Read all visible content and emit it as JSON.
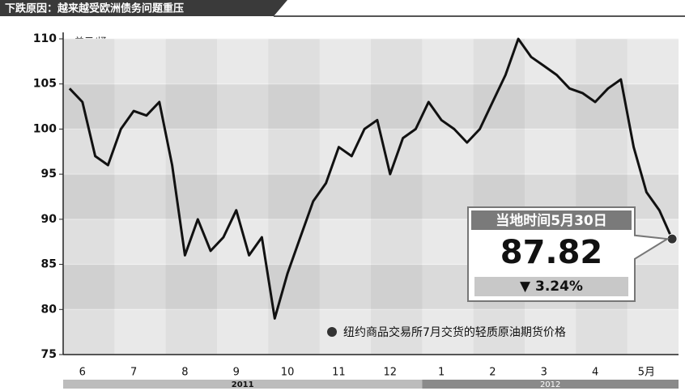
{
  "chart_data": {
    "type": "line",
    "title": "下跌原因：越来越受欧洲债务问题重压",
    "y_label": "美元/桶",
    "categories": [
      null,
      "6",
      null,
      null,
      null,
      "7",
      null,
      null,
      null,
      "8",
      null,
      null,
      null,
      "9",
      null,
      null,
      null,
      "10",
      null,
      null,
      null,
      "11",
      null,
      null,
      null,
      "12",
      null,
      null,
      null,
      "1",
      null,
      null,
      null,
      "2",
      null,
      null,
      null,
      "3",
      null,
      null,
      null,
      "4",
      null,
      null,
      null,
      "5月",
      null,
      null
    ],
    "years": [
      "2011",
      "2012"
    ],
    "series": [
      {
        "name": "纽约商品交易所7月交货的轻质原油期货价格",
        "color": "#111111",
        "values": [
          104.5,
          103,
          97,
          96,
          100,
          102,
          101.5,
          103,
          96,
          86,
          90,
          86.5,
          88,
          91,
          86,
          88,
          79,
          84,
          88,
          92,
          94,
          98,
          97,
          100,
          101,
          95,
          99,
          100,
          103,
          101,
          100,
          98.5,
          100,
          103,
          106,
          110,
          108,
          107,
          106,
          104.5,
          104,
          103,
          104.5,
          105.5,
          98,
          93,
          91,
          87.82
        ]
      }
    ],
    "ylim": [
      75,
      110
    ],
    "yticks": [
      75,
      80,
      85,
      90,
      95,
      100,
      105,
      110
    ],
    "callout": {
      "date": "当地时间5月30日",
      "change": "▼ 3.24%"
    }
  }
}
